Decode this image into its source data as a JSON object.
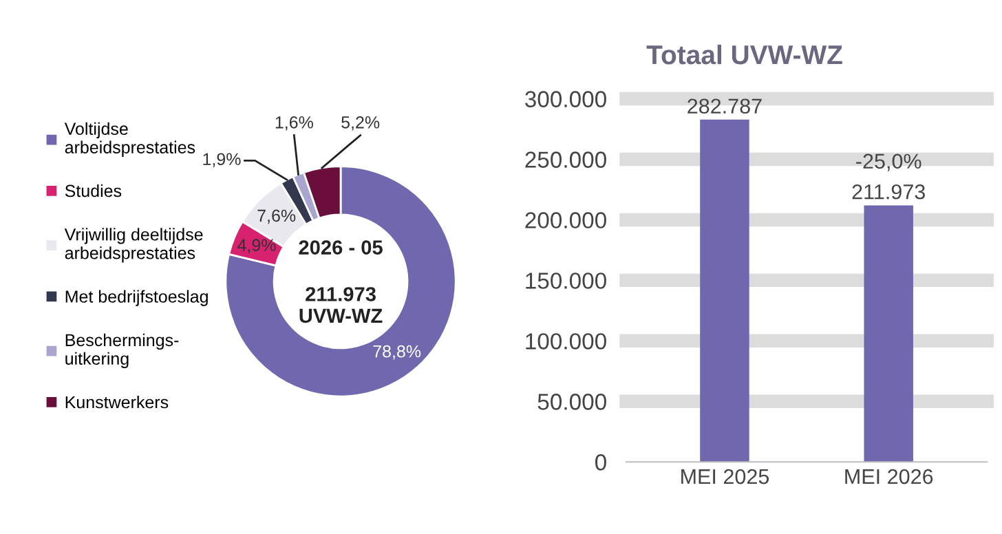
{
  "chart_data": [
    {
      "type": "donut",
      "categories": [
        "Voltijdse\narbeidsprestaties",
        "Studies",
        "Vrijwillig deeltijdse\narbeidsprestaties",
        "Met bedrijfstoeslag",
        "Beschermings-\nuitkering",
        "Kunstwerkers"
      ],
      "values": [
        78.8,
        4.9,
        7.6,
        1.9,
        1.6,
        5.2
      ],
      "value_labels": [
        "78,8%",
        "4,9%",
        "7,6%",
        "1,9%",
        "1,6%",
        "5,2%"
      ],
      "colors": [
        "#6f68ae",
        "#d6226f",
        "#e8e8ee",
        "#34384f",
        "#a8a6cf",
        "#6a0f3b"
      ],
      "annotations": [
        "2026 - 05",
        "211.973\nUVW-WZ"
      ],
      "legend": "left"
    },
    {
      "type": "bar",
      "title": "Totaal UVW-WZ",
      "categories": [
        "MEI 2025",
        "MEI 2026"
      ],
      "values": [
        282787,
        211973
      ],
      "color": "#6f68ae",
      "value_labels": [
        "282.787",
        "211.973"
      ],
      "annotations": [
        {
          "text": "-25,0%",
          "x": "MEI 2026",
          "y": 211973
        }
      ],
      "ylim": [
        0,
        300000
      ],
      "yticks": [
        {
          "value": 0,
          "label": "0"
        },
        {
          "value": 50000,
          "label": "50.000"
        },
        {
          "value": 100000,
          "label": "100.000"
        },
        {
          "value": 150000,
          "label": "150.000"
        },
        {
          "value": 200000,
          "label": "200.000"
        },
        {
          "value": 250000,
          "label": "250.000"
        },
        {
          "value": 300000,
          "label": "300.000"
        }
      ],
      "grid": "y"
    }
  ]
}
